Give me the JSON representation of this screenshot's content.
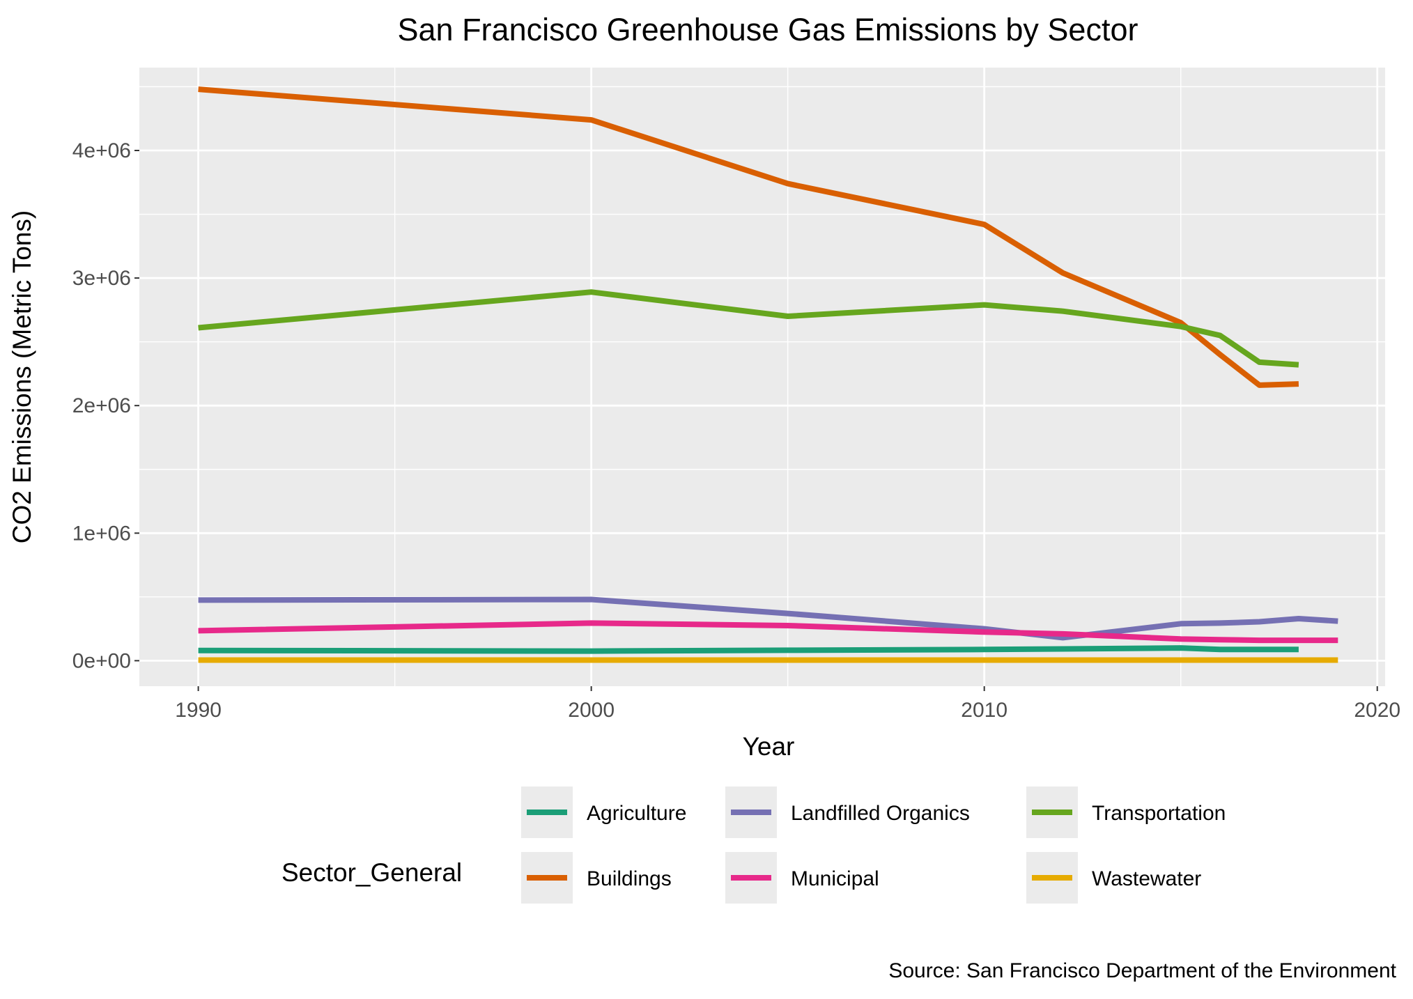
{
  "chart_data": {
    "type": "line",
    "title": "San Francisco Greenhouse Gas Emissions by Sector",
    "xlabel": "Year",
    "ylabel": "CO2 Emissions (Metric Tons)",
    "caption": "Source: San Francisco Department of the Environment",
    "xlim": [
      1988.5,
      2020.2
    ],
    "ylim": [
      -200000,
      4650000
    ],
    "x_ticks": [
      1990,
      2000,
      2010,
      2020
    ],
    "x_tick_labels": [
      "1990",
      "2000",
      "2010",
      "2020"
    ],
    "x_minor_ticks": [
      1995,
      2005,
      2015
    ],
    "y_ticks": [
      0,
      1000000,
      2000000,
      3000000,
      4000000
    ],
    "y_tick_labels": [
      "0e+00",
      "1e+06",
      "2e+06",
      "3e+06",
      "4e+06"
    ],
    "y_minor_ticks": [
      500000,
      1500000,
      2500000,
      3500000,
      4500000
    ],
    "grid": true,
    "panel_background": "#ebebeb",
    "legend": {
      "title": "Sector_General",
      "placement": "bottom",
      "background": "#ebebeb"
    },
    "series": [
      {
        "name": "Agriculture",
        "color": "#1b9e77",
        "x": [
          1990,
          2000,
          2005,
          2010,
          2012,
          2015,
          2016,
          2017,
          2018
        ],
        "y": [
          80000,
          75000,
          82000,
          88000,
          92000,
          100000,
          88000,
          88000,
          88000
        ]
      },
      {
        "name": "Buildings",
        "color": "#d95f02",
        "x": [
          1990,
          2000,
          2005,
          2010,
          2012,
          2015,
          2016,
          2017,
          2018
        ],
        "y": [
          4480000,
          4240000,
          3740000,
          3420000,
          3040000,
          2650000,
          2400000,
          2160000,
          2170000
        ]
      },
      {
        "name": "Landfilled Organics",
        "color": "#7570b3",
        "x": [
          1990,
          2000,
          2005,
          2010,
          2012,
          2015,
          2016,
          2017,
          2018,
          2019
        ],
        "y": [
          475000,
          480000,
          370000,
          250000,
          180000,
          290000,
          295000,
          305000,
          330000,
          310000
        ]
      },
      {
        "name": "Municipal",
        "color": "#e7298a",
        "x": [
          1990,
          2000,
          2005,
          2010,
          2012,
          2015,
          2016,
          2017,
          2018,
          2019
        ],
        "y": [
          235000,
          295000,
          275000,
          225000,
          210000,
          170000,
          165000,
          160000,
          160000,
          160000
        ]
      },
      {
        "name": "Transportation",
        "color": "#66a61e",
        "x": [
          1990,
          2000,
          2005,
          2010,
          2012,
          2015,
          2016,
          2017,
          2018
        ],
        "y": [
          2610000,
          2890000,
          2700000,
          2790000,
          2740000,
          2620000,
          2550000,
          2340000,
          2320000
        ]
      },
      {
        "name": "Wastewater",
        "color": "#e6ab02",
        "x": [
          1990,
          2000,
          2005,
          2010,
          2012,
          2015,
          2016,
          2017,
          2018,
          2019
        ],
        "y": [
          5000,
          5000,
          5000,
          5000,
          5000,
          5000,
          5000,
          5000,
          5000,
          5000
        ]
      }
    ]
  }
}
